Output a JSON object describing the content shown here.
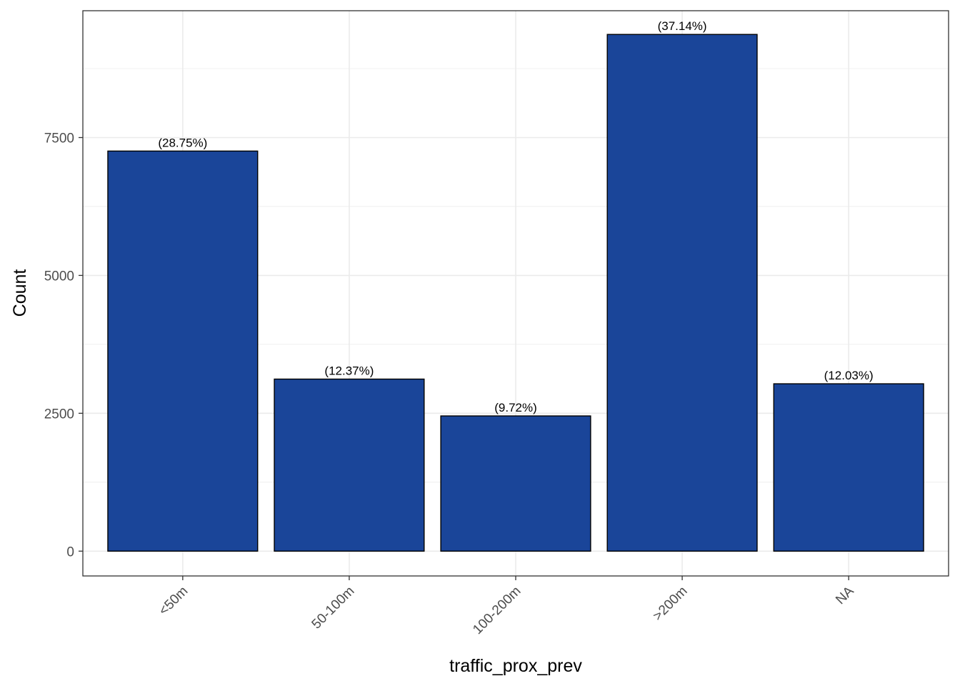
{
  "chart_data": {
    "type": "bar",
    "categories": [
      "<50m",
      "50-100m",
      "100-200m",
      ">200m",
      "NA"
    ],
    "values": [
      7255,
      3120,
      2452,
      9370,
      3035
    ],
    "labels": [
      "(28.75%)",
      "(12.37%)",
      "(9.72%)",
      "(37.14%)",
      "(12.03%)"
    ],
    "title": "",
    "xlabel": "traffic_prox_prev",
    "ylabel": "Count",
    "ylim": [
      -450,
      9800
    ],
    "yticks": [
      0,
      2500,
      5000,
      7500
    ],
    "ytick_labels": [
      "0",
      "2500",
      "5000",
      "7500"
    ],
    "grid": true,
    "legend": "none",
    "colors": {
      "bar_fill": "#1A4599",
      "bar_outline": "#000000",
      "grid": "#EBEBEB",
      "panel_border": "#333333"
    }
  }
}
